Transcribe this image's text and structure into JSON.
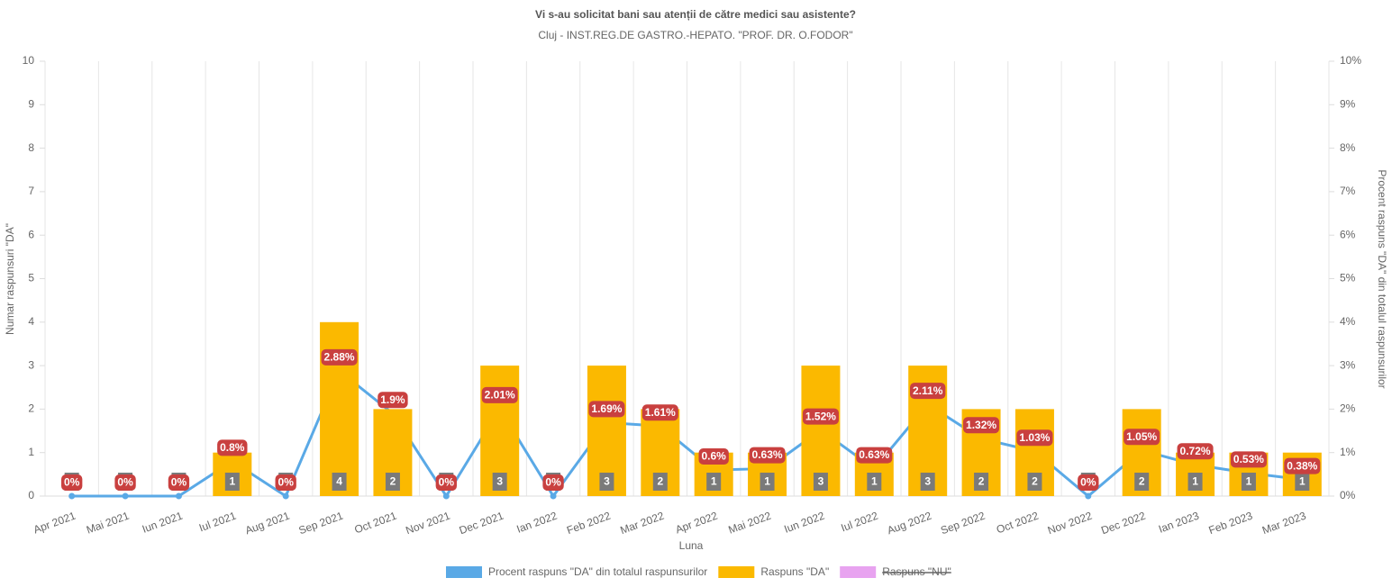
{
  "chart_data": {
    "type": "bar_line",
    "title": "Vi s-au solicitat bani sau atenții de către medici sau asistente?",
    "subtitle": "Cluj - INST.REG.DE GASTRO.-HEPATO. \"PROF. DR. O.FODOR\"",
    "x_label": "Luna",
    "y_label": "Numar raspunsuri \"DA\"",
    "y2_label": "Procent raspuns \"DA\" din totalul raspunsurilor",
    "categories": [
      "Apr 2021",
      "Mai 2021",
      "Iun 2021",
      "Iul 2021",
      "Aug 2021",
      "Sep 2021",
      "Oct 2021",
      "Nov 2021",
      "Dec 2021",
      "Ian 2022",
      "Feb 2022",
      "Mar 2022",
      "Apr 2022",
      "Mai 2022",
      "Iun 2022",
      "Iul 2022",
      "Aug 2022",
      "Sep 2022",
      "Oct 2022",
      "Nov 2022",
      "Dec 2022",
      "Ian 2023",
      "Feb 2023",
      "Mar 2023"
    ],
    "series": [
      {
        "name": "Procent raspuns \"DA\" din totalul raspunsurilor",
        "type": "line",
        "axis": "y2",
        "color": "#5aa9e6",
        "values": [
          0,
          0,
          0,
          0.8,
          0,
          2.88,
          1.9,
          0,
          2.01,
          0,
          1.69,
          1.61,
          0.6,
          0.63,
          1.52,
          0.63,
          2.11,
          1.32,
          1.03,
          0,
          1.05,
          0.72,
          0.53,
          0.38
        ],
        "value_labels": [
          "0%",
          "0%",
          "0%",
          "0.8%",
          "0%",
          "2.88%",
          "1.9%",
          "0%",
          "2.01%",
          "0%",
          "1.69%",
          "1.61%",
          "0.6%",
          "0.63%",
          "1.52%",
          "0.63%",
          "2.11%",
          "1.32%",
          "1.03%",
          "0%",
          "1.05%",
          "0.72%",
          "0.53%",
          "0.38%"
        ]
      },
      {
        "name": "Raspuns \"DA\"",
        "type": "bar",
        "color": "#fbb900",
        "values": [
          0,
          0,
          0,
          1,
          0,
          4,
          2,
          0,
          3,
          0,
          3,
          2,
          1,
          1,
          3,
          1,
          3,
          2,
          2,
          0,
          2,
          1,
          1,
          1
        ]
      },
      {
        "name": "Raspuns \"NU\"",
        "type": "bar",
        "color": "#e8a3f0",
        "hidden": true
      }
    ],
    "ylim": [
      0,
      10
    ],
    "yticks": [
      0,
      1,
      2,
      3,
      4,
      5,
      6,
      7,
      8,
      9,
      10
    ],
    "y2lim": [
      0,
      10
    ],
    "y2ticks": [
      {
        "value": 0,
        "label": "0%"
      },
      {
        "value": 1,
        "label": "1%"
      },
      {
        "value": 2,
        "label": "2%"
      },
      {
        "value": 3,
        "label": "3%"
      },
      {
        "value": 4,
        "label": "4%"
      },
      {
        "value": 5,
        "label": "5%"
      },
      {
        "value": 6,
        "label": "6%"
      },
      {
        "value": 7,
        "label": "7%"
      },
      {
        "value": 8,
        "label": "8%"
      },
      {
        "value": 9,
        "label": "9%"
      },
      {
        "value": 10,
        "label": "10%"
      }
    ],
    "grid": "x",
    "legend": "bottom"
  }
}
